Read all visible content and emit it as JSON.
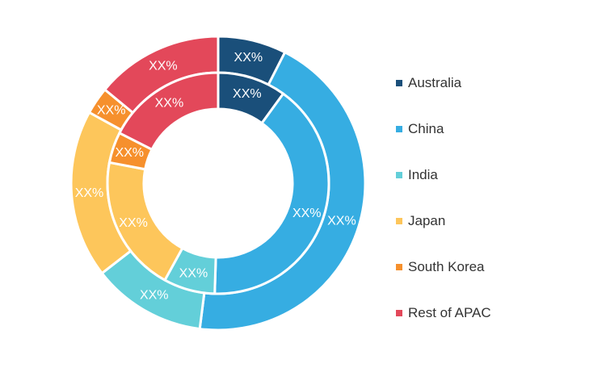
{
  "chart_data": {
    "type": "pie",
    "variant": "nested-donut",
    "legend_position": "right",
    "categories": [
      "Australia",
      "China",
      "India",
      "Japan",
      "South Korea",
      "Rest of APAC"
    ],
    "colors": [
      "#1a4f7a",
      "#36ade2",
      "#63cfd9",
      "#fdc65b",
      "#f6902d",
      "#e3485a"
    ],
    "series": [
      {
        "ring": "outer",
        "values": [
          7.5,
          44.5,
          12.5,
          18.5,
          3,
          14
        ],
        "labels": [
          "XX%",
          "XX%",
          "XX%",
          "XX%",
          "XX%",
          "XX%"
        ]
      },
      {
        "ring": "inner",
        "values": [
          10,
          40.5,
          7.5,
          20,
          4.5,
          17.5
        ],
        "labels": [
          "XX%",
          "XX%",
          "XX%",
          "XX%",
          "XX%",
          "XX%"
        ]
      }
    ]
  }
}
